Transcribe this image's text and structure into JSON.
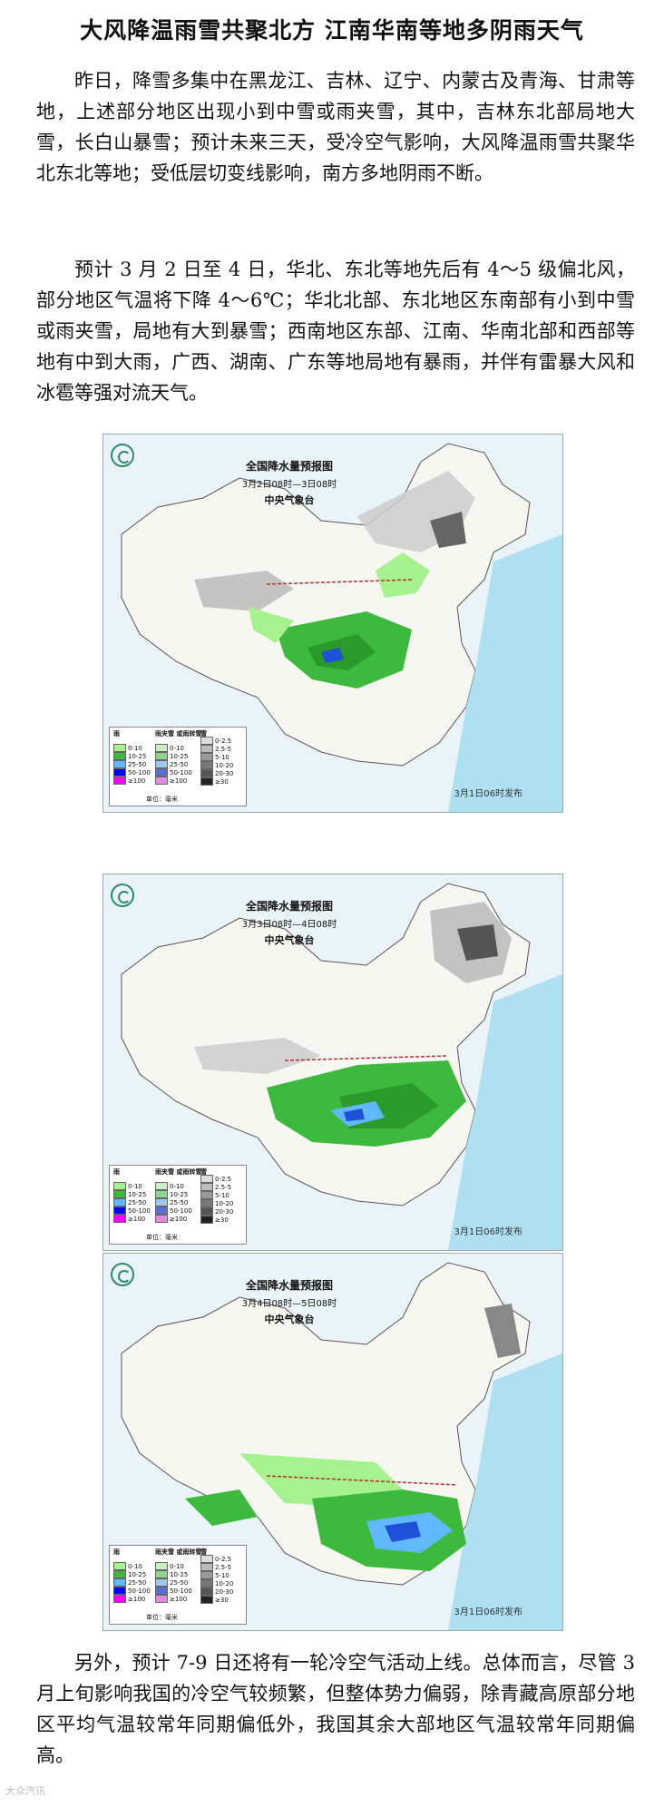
{
  "article": {
    "title": "大风降温雨雪共聚北方 江南华南等地多阴雨天气",
    "paragraphs": [
      "昨日，降雪多集中在黑龙江、吉林、辽宁、内蒙古及青海、甘肃等地，上述部分地区出现小到中雪或雨夹雪，其中，吉林东北部局地大雪，长白山暴雪；预计未来三天，受冷空气影响，大风降温雨雪共聚华北东北等地；受低层切变线影响，南方多地阴雨不断。",
      "预计 3 月 2 日至 4 日，华北、东北等地先后有 4～5 级偏北风，部分地区气温将下降 4～6℃；华北北部、东北地区东南部有小到中雪或雨夹雪，局地有大到暴雪；西南地区东部、江南、华南北部和西部等地有中到大雨，广西、湖南、广东等地局地有暴雨，并伴有雷暴大风和冰雹等强对流天气。",
      "另外，预计 7-9 日还将有一轮冷空气活动上线。总体而言，尽管 3 月上旬影响我国的冷空气较频繁，但整体势力偏弱，除青藏高原部分地区平均气温较常年同期偏低外，我国其余大部地区气温较常年同期偏高。"
    ]
  },
  "maps": [
    {
      "title": "全国降水量预报图",
      "time": "3月2日08时—3日08时",
      "agency": "中央气象台",
      "publish": "3月1日06时发布"
    },
    {
      "title": "全国降水量预报图",
      "time": "3月3日08时—4日08时",
      "agency": "中央气象台",
      "publish": "3月1日06时发布"
    },
    {
      "title": "全国降水量预报图",
      "time": "3月4日08时—5日08时",
      "agency": "中央气象台",
      "publish": "3月1日06时发布"
    }
  ],
  "legend": {
    "rain_header": "雨",
    "mix_header": "雨夹雪 或雨转雪",
    "snow_header": "雪",
    "rain": [
      {
        "label": "0-10",
        "color": "#a6f28f"
      },
      {
        "label": "10-25",
        "color": "#3dba3d"
      },
      {
        "label": "25-50",
        "color": "#61b8ff"
      },
      {
        "label": "50-100",
        "color": "#0000ff"
      },
      {
        "label": "≥100",
        "color": "#fa00fa"
      }
    ],
    "mix": [
      {
        "label": "0-10",
        "color": "#c8f0c0"
      },
      {
        "label": "10-25",
        "color": "#8fd48f"
      },
      {
        "label": "25-50",
        "color": "#9ec8f0"
      },
      {
        "label": "50-100",
        "color": "#5a6fd6"
      },
      {
        "label": "≥100",
        "color": "#e08ae0"
      }
    ],
    "snow": [
      {
        "label": "0-2.5",
        "color": "#dddddd"
      },
      {
        "label": "2.5-5",
        "color": "#bbbbbb"
      },
      {
        "label": "5-10",
        "color": "#999999"
      },
      {
        "label": "10-20",
        "color": "#777777"
      },
      {
        "label": "20-30",
        "color": "#555555"
      },
      {
        "label": "≥30",
        "color": "#222222"
      }
    ],
    "unit": "单位：毫米"
  },
  "watermark": "大众汽讯"
}
